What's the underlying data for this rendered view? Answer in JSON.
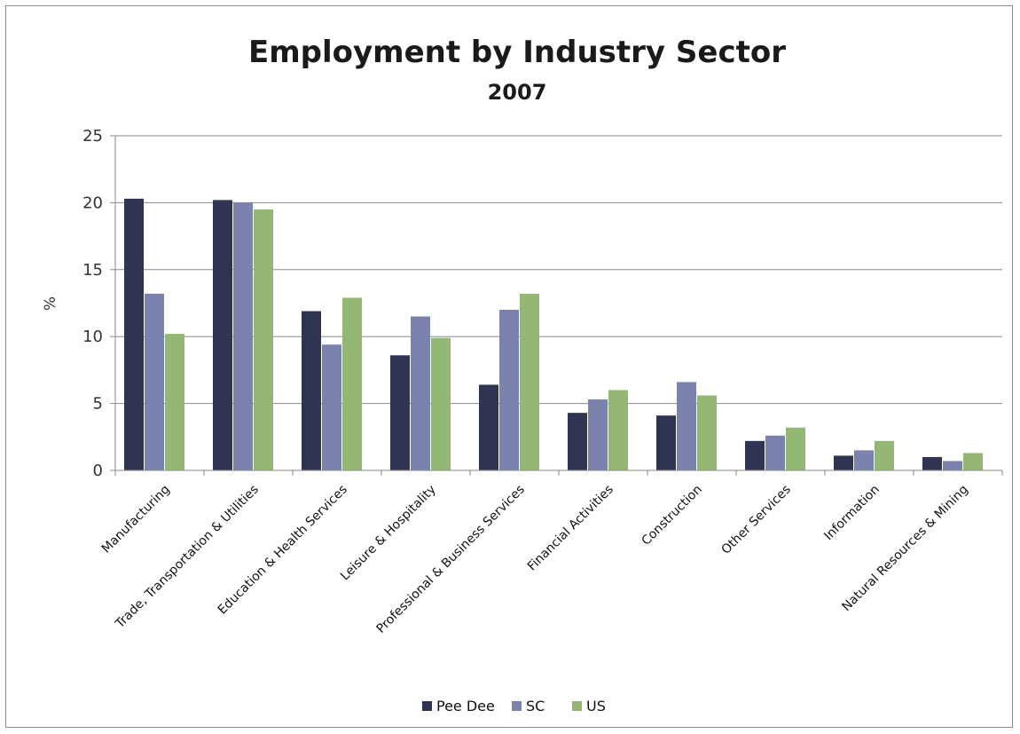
{
  "chart_data": {
    "type": "bar",
    "title": "Employment by Industry Sector",
    "subtitle": "2007",
    "ylabel": "%",
    "xlabel": "",
    "ylim": [
      0,
      25
    ],
    "yticks": [
      0,
      5,
      10,
      15,
      20,
      25
    ],
    "grid": true,
    "legend_position": "bottom",
    "categories": [
      "Manufacturing",
      "Trade, Transportation & Utilities",
      "Education & Health Services",
      "Leisure & Hospitality",
      "Professional & Business Services",
      "Financial Activities",
      "Construction",
      "Other Services",
      "Information",
      "Natural Resources & Mining"
    ],
    "series": [
      {
        "name": "Pee Dee",
        "color": "#2e3452",
        "values": [
          20.3,
          20.2,
          11.9,
          8.6,
          6.4,
          4.3,
          4.1,
          2.2,
          1.1,
          1.0
        ]
      },
      {
        "name": "SC",
        "color": "#7a82ad",
        "values": [
          13.2,
          20.0,
          9.4,
          11.5,
          12.0,
          5.3,
          6.6,
          2.6,
          1.5,
          0.7
        ]
      },
      {
        "name": "US",
        "color": "#94b874",
        "values": [
          10.2,
          19.5,
          12.9,
          9.9,
          13.2,
          6.0,
          5.6,
          3.2,
          2.2,
          1.3
        ]
      }
    ]
  }
}
